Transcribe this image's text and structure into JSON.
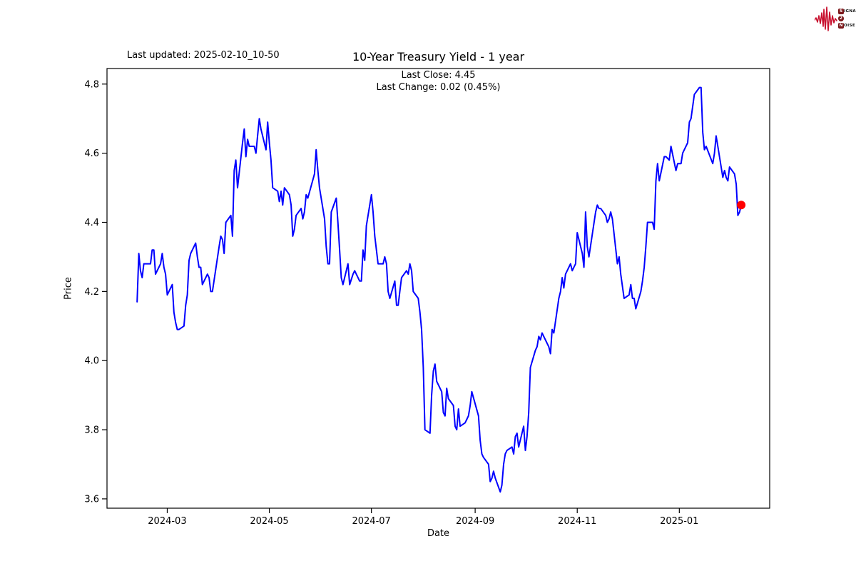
{
  "header": {
    "last_updated": "Last updated: 2025-02-10_10-50",
    "logo": {
      "word1_badge": "S",
      "word1_rest": "IGNAL",
      "word2_badge": "2",
      "word3_badge": "N",
      "word3_rest": "OISE",
      "waveform_color": "#c8102e",
      "badge_color": "#7a1518",
      "text_color": "#111111"
    }
  },
  "chart": {
    "title": "10-Year Treasury Yield - 1 year",
    "annotation_line1": "Last Close: 4.45",
    "annotation_line2": "Last Change: 0.02 (0.45%)",
    "xlabel": "Date",
    "ylabel": "Price"
  },
  "chart_data": {
    "type": "line",
    "title": "10-Year Treasury Yield - 1 year",
    "xlabel": "Date",
    "ylabel": "Price",
    "grid": false,
    "legend": "none",
    "line_color": "#0000ff",
    "marker_color": "#ff0000",
    "ylim": [
      3.573,
      4.845
    ],
    "xlim": [
      "2024-01-25",
      "2025-02-24"
    ],
    "y_ticks": [
      {
        "value": 3.6,
        "label": "3.6"
      },
      {
        "value": 3.8,
        "label": "3.8"
      },
      {
        "value": 4.0,
        "label": "4.0"
      },
      {
        "value": 4.2,
        "label": "4.2"
      },
      {
        "value": 4.4,
        "label": "4.4"
      },
      {
        "value": 4.6,
        "label": "4.6"
      },
      {
        "value": 4.8,
        "label": "4.8"
      }
    ],
    "x_ticks": [
      {
        "date": "2024-03-01",
        "label": "2024-03"
      },
      {
        "date": "2024-05-01",
        "label": "2024-05"
      },
      {
        "date": "2024-07-01",
        "label": "2024-07"
      },
      {
        "date": "2024-09-01",
        "label": "2024-09"
      },
      {
        "date": "2024-11-01",
        "label": "2024-11"
      },
      {
        "date": "2025-01-01",
        "label": "2025-01"
      }
    ],
    "stats": {
      "last_close": 4.45,
      "last_change": 0.02,
      "last_change_pct": "0.45%"
    },
    "series": [
      {
        "name": "10-Year Treasury Yield",
        "points": [
          [
            "2024-02-12",
            4.17
          ],
          [
            "2024-02-13",
            4.31
          ],
          [
            "2024-02-14",
            4.26
          ],
          [
            "2024-02-15",
            4.24
          ],
          [
            "2024-02-16",
            4.28
          ],
          [
            "2024-02-20",
            4.28
          ],
          [
            "2024-02-21",
            4.32
          ],
          [
            "2024-02-22",
            4.32
          ],
          [
            "2024-02-23",
            4.25
          ],
          [
            "2024-02-26",
            4.28
          ],
          [
            "2024-02-27",
            4.31
          ],
          [
            "2024-02-28",
            4.27
          ],
          [
            "2024-02-29",
            4.25
          ],
          [
            "2024-03-01",
            4.19
          ],
          [
            "2024-03-04",
            4.22
          ],
          [
            "2024-03-05",
            4.14
          ],
          [
            "2024-03-06",
            4.11
          ],
          [
            "2024-03-07",
            4.09
          ],
          [
            "2024-03-08",
            4.09
          ],
          [
            "2024-03-11",
            4.1
          ],
          [
            "2024-03-12",
            4.16
          ],
          [
            "2024-03-13",
            4.19
          ],
          [
            "2024-03-14",
            4.29
          ],
          [
            "2024-03-15",
            4.31
          ],
          [
            "2024-03-18",
            4.34
          ],
          [
            "2024-03-19",
            4.3
          ],
          [
            "2024-03-20",
            4.27
          ],
          [
            "2024-03-21",
            4.27
          ],
          [
            "2024-03-22",
            4.22
          ],
          [
            "2024-03-25",
            4.25
          ],
          [
            "2024-03-26",
            4.24
          ],
          [
            "2024-03-27",
            4.2
          ],
          [
            "2024-03-28",
            4.2
          ],
          [
            "2024-04-01",
            4.33
          ],
          [
            "2024-04-02",
            4.36
          ],
          [
            "2024-04-03",
            4.35
          ],
          [
            "2024-04-04",
            4.31
          ],
          [
            "2024-04-05",
            4.4
          ],
          [
            "2024-04-08",
            4.42
          ],
          [
            "2024-04-09",
            4.36
          ],
          [
            "2024-04-10",
            4.55
          ],
          [
            "2024-04-11",
            4.58
          ],
          [
            "2024-04-12",
            4.5
          ],
          [
            "2024-04-15",
            4.63
          ],
          [
            "2024-04-16",
            4.67
          ],
          [
            "2024-04-17",
            4.59
          ],
          [
            "2024-04-18",
            4.64
          ],
          [
            "2024-04-19",
            4.62
          ],
          [
            "2024-04-22",
            4.62
          ],
          [
            "2024-04-23",
            4.6
          ],
          [
            "2024-04-24",
            4.65
          ],
          [
            "2024-04-25",
            4.7
          ],
          [
            "2024-04-26",
            4.67
          ],
          [
            "2024-04-29",
            4.61
          ],
          [
            "2024-04-30",
            4.69
          ],
          [
            "2024-05-01",
            4.63
          ],
          [
            "2024-05-02",
            4.58
          ],
          [
            "2024-05-03",
            4.5
          ],
          [
            "2024-05-06",
            4.49
          ],
          [
            "2024-05-07",
            4.46
          ],
          [
            "2024-05-08",
            4.49
          ],
          [
            "2024-05-09",
            4.45
          ],
          [
            "2024-05-10",
            4.5
          ],
          [
            "2024-05-13",
            4.48
          ],
          [
            "2024-05-14",
            4.45
          ],
          [
            "2024-05-15",
            4.36
          ],
          [
            "2024-05-16",
            4.38
          ],
          [
            "2024-05-17",
            4.42
          ],
          [
            "2024-05-20",
            4.44
          ],
          [
            "2024-05-21",
            4.41
          ],
          [
            "2024-05-22",
            4.43
          ],
          [
            "2024-05-23",
            4.48
          ],
          [
            "2024-05-24",
            4.47
          ],
          [
            "2024-05-28",
            4.54
          ],
          [
            "2024-05-29",
            4.61
          ],
          [
            "2024-05-30",
            4.55
          ],
          [
            "2024-05-31",
            4.5
          ],
          [
            "2024-06-03",
            4.41
          ],
          [
            "2024-06-04",
            4.33
          ],
          [
            "2024-06-05",
            4.28
          ],
          [
            "2024-06-06",
            4.28
          ],
          [
            "2024-06-07",
            4.43
          ],
          [
            "2024-06-10",
            4.47
          ],
          [
            "2024-06-11",
            4.4
          ],
          [
            "2024-06-12",
            4.32
          ],
          [
            "2024-06-13",
            4.24
          ],
          [
            "2024-06-14",
            4.22
          ],
          [
            "2024-06-17",
            4.28
          ],
          [
            "2024-06-18",
            4.22
          ],
          [
            "2024-06-20",
            4.25
          ],
          [
            "2024-06-21",
            4.26
          ],
          [
            "2024-06-24",
            4.23
          ],
          [
            "2024-06-25",
            4.23
          ],
          [
            "2024-06-26",
            4.32
          ],
          [
            "2024-06-27",
            4.29
          ],
          [
            "2024-06-28",
            4.39
          ],
          [
            "2024-07-01",
            4.48
          ],
          [
            "2024-07-02",
            4.43
          ],
          [
            "2024-07-03",
            4.36
          ],
          [
            "2024-07-05",
            4.28
          ],
          [
            "2024-07-08",
            4.28
          ],
          [
            "2024-07-09",
            4.3
          ],
          [
            "2024-07-10",
            4.28
          ],
          [
            "2024-07-11",
            4.2
          ],
          [
            "2024-07-12",
            4.18
          ],
          [
            "2024-07-15",
            4.23
          ],
          [
            "2024-07-16",
            4.16
          ],
          [
            "2024-07-17",
            4.16
          ],
          [
            "2024-07-18",
            4.2
          ],
          [
            "2024-07-19",
            4.24
          ],
          [
            "2024-07-22",
            4.26
          ],
          [
            "2024-07-23",
            4.25
          ],
          [
            "2024-07-24",
            4.28
          ],
          [
            "2024-07-25",
            4.26
          ],
          [
            "2024-07-26",
            4.2
          ],
          [
            "2024-07-29",
            4.18
          ],
          [
            "2024-07-30",
            4.14
          ],
          [
            "2024-07-31",
            4.09
          ],
          [
            "2024-08-01",
            3.98
          ],
          [
            "2024-08-02",
            3.8
          ],
          [
            "2024-08-05",
            3.79
          ],
          [
            "2024-08-06",
            3.9
          ],
          [
            "2024-08-07",
            3.97
          ],
          [
            "2024-08-08",
            3.99
          ],
          [
            "2024-08-09",
            3.94
          ],
          [
            "2024-08-12",
            3.91
          ],
          [
            "2024-08-13",
            3.85
          ],
          [
            "2024-08-14",
            3.84
          ],
          [
            "2024-08-15",
            3.92
          ],
          [
            "2024-08-16",
            3.89
          ],
          [
            "2024-08-19",
            3.87
          ],
          [
            "2024-08-20",
            3.81
          ],
          [
            "2024-08-21",
            3.8
          ],
          [
            "2024-08-22",
            3.86
          ],
          [
            "2024-08-23",
            3.81
          ],
          [
            "2024-08-26",
            3.82
          ],
          [
            "2024-08-27",
            3.83
          ],
          [
            "2024-08-28",
            3.84
          ],
          [
            "2024-08-29",
            3.87
          ],
          [
            "2024-08-30",
            3.91
          ],
          [
            "2024-09-03",
            3.84
          ],
          [
            "2024-09-04",
            3.77
          ],
          [
            "2024-09-05",
            3.73
          ],
          [
            "2024-09-06",
            3.72
          ],
          [
            "2024-09-09",
            3.7
          ],
          [
            "2024-09-10",
            3.65
          ],
          [
            "2024-09-11",
            3.66
          ],
          [
            "2024-09-12",
            3.68
          ],
          [
            "2024-09-13",
            3.66
          ],
          [
            "2024-09-16",
            3.62
          ],
          [
            "2024-09-17",
            3.64
          ],
          [
            "2024-09-18",
            3.7
          ],
          [
            "2024-09-19",
            3.73
          ],
          [
            "2024-09-20",
            3.74
          ],
          [
            "2024-09-23",
            3.75
          ],
          [
            "2024-09-24",
            3.73
          ],
          [
            "2024-09-25",
            3.78
          ],
          [
            "2024-09-26",
            3.79
          ],
          [
            "2024-09-27",
            3.75
          ],
          [
            "2024-09-30",
            3.81
          ],
          [
            "2024-10-01",
            3.74
          ],
          [
            "2024-10-02",
            3.78
          ],
          [
            "2024-10-03",
            3.85
          ],
          [
            "2024-10-04",
            3.98
          ],
          [
            "2024-10-07",
            4.03
          ],
          [
            "2024-10-08",
            4.04
          ],
          [
            "2024-10-09",
            4.07
          ],
          [
            "2024-10-10",
            4.06
          ],
          [
            "2024-10-11",
            4.08
          ],
          [
            "2024-10-15",
            4.04
          ],
          [
            "2024-10-16",
            4.02
          ],
          [
            "2024-10-17",
            4.09
          ],
          [
            "2024-10-18",
            4.08
          ],
          [
            "2024-10-21",
            4.18
          ],
          [
            "2024-10-22",
            4.2
          ],
          [
            "2024-10-23",
            4.24
          ],
          [
            "2024-10-24",
            4.21
          ],
          [
            "2024-10-25",
            4.25
          ],
          [
            "2024-10-28",
            4.28
          ],
          [
            "2024-10-29",
            4.26
          ],
          [
            "2024-10-30",
            4.27
          ],
          [
            "2024-10-31",
            4.28
          ],
          [
            "2024-11-01",
            4.37
          ],
          [
            "2024-11-04",
            4.31
          ],
          [
            "2024-11-05",
            4.27
          ],
          [
            "2024-11-06",
            4.43
          ],
          [
            "2024-11-07",
            4.33
          ],
          [
            "2024-11-08",
            4.3
          ],
          [
            "2024-11-12",
            4.43
          ],
          [
            "2024-11-13",
            4.45
          ],
          [
            "2024-11-14",
            4.44
          ],
          [
            "2024-11-15",
            4.44
          ],
          [
            "2024-11-18",
            4.42
          ],
          [
            "2024-11-19",
            4.4
          ],
          [
            "2024-11-20",
            4.41
          ],
          [
            "2024-11-21",
            4.43
          ],
          [
            "2024-11-22",
            4.41
          ],
          [
            "2024-11-25",
            4.28
          ],
          [
            "2024-11-26",
            4.3
          ],
          [
            "2024-11-27",
            4.25
          ],
          [
            "2024-11-29",
            4.18
          ],
          [
            "2024-12-02",
            4.19
          ],
          [
            "2024-12-03",
            4.22
          ],
          [
            "2024-12-04",
            4.18
          ],
          [
            "2024-12-05",
            4.18
          ],
          [
            "2024-12-06",
            4.15
          ],
          [
            "2024-12-09",
            4.2
          ],
          [
            "2024-12-10",
            4.23
          ],
          [
            "2024-12-11",
            4.27
          ],
          [
            "2024-12-12",
            4.33
          ],
          [
            "2024-12-13",
            4.4
          ],
          [
            "2024-12-16",
            4.4
          ],
          [
            "2024-12-17",
            4.38
          ],
          [
            "2024-12-18",
            4.52
          ],
          [
            "2024-12-19",
            4.57
          ],
          [
            "2024-12-20",
            4.52
          ],
          [
            "2024-12-23",
            4.59
          ],
          [
            "2024-12-24",
            4.59
          ],
          [
            "2024-12-26",
            4.58
          ],
          [
            "2024-12-27",
            4.62
          ],
          [
            "2024-12-30",
            4.55
          ],
          [
            "2024-12-31",
            4.57
          ],
          [
            "2025-01-02",
            4.57
          ],
          [
            "2025-01-03",
            4.6
          ],
          [
            "2025-01-06",
            4.63
          ],
          [
            "2025-01-07",
            4.69
          ],
          [
            "2025-01-08",
            4.7
          ],
          [
            "2025-01-10",
            4.77
          ],
          [
            "2025-01-13",
            4.79
          ],
          [
            "2025-01-14",
            4.79
          ],
          [
            "2025-01-15",
            4.66
          ],
          [
            "2025-01-16",
            4.61
          ],
          [
            "2025-01-17",
            4.62
          ],
          [
            "2025-01-21",
            4.57
          ],
          [
            "2025-01-22",
            4.6
          ],
          [
            "2025-01-23",
            4.65
          ],
          [
            "2025-01-24",
            4.62
          ],
          [
            "2025-01-27",
            4.53
          ],
          [
            "2025-01-28",
            4.55
          ],
          [
            "2025-01-29",
            4.53
          ],
          [
            "2025-01-30",
            4.52
          ],
          [
            "2025-01-31",
            4.56
          ],
          [
            "2025-02-03",
            4.54
          ],
          [
            "2025-02-04",
            4.51
          ],
          [
            "2025-02-05",
            4.42
          ],
          [
            "2025-02-06",
            4.43
          ],
          [
            "2025-02-07",
            4.45
          ]
        ]
      }
    ]
  }
}
